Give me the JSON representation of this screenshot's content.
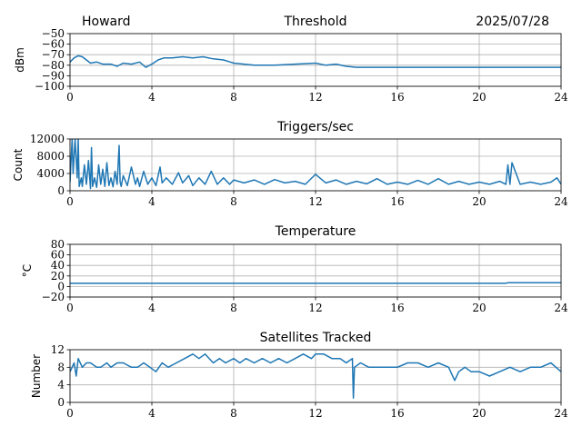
{
  "header": {
    "station": "Howard",
    "date": "2025/07/28"
  },
  "style": {
    "line_color": "#1f77b4",
    "grid_color": "#b0b0b0"
  },
  "chart_data": [
    {
      "id": "threshold",
      "type": "line",
      "title": "Threshold",
      "xlabel": "",
      "ylabel": "dBm",
      "xlim": [
        0,
        24
      ],
      "ylim": [
        -100,
        -50
      ],
      "xticks": [
        0,
        4,
        8,
        12,
        16,
        20,
        24
      ],
      "yticks": [
        -100,
        -90,
        -80,
        -70,
        -60,
        -50
      ],
      "ytick_labels": [
        "−100",
        "−90",
        "−80",
        "−70",
        "−60",
        "−50"
      ],
      "grid": true,
      "series": [
        {
          "x": [
            0,
            0.2,
            0.4,
            0.6,
            0.8,
            1.0,
            1.3,
            1.6,
            2.0,
            2.3,
            2.6,
            3.0,
            3.4,
            3.7,
            4.0,
            4.3,
            4.6,
            5.0,
            5.5,
            6.0,
            6.5,
            7.0,
            7.5,
            8.0,
            8.5,
            9.0,
            10.0,
            11.0,
            12.0,
            12.5,
            13.0,
            13.5,
            14.0,
            15.0,
            16.0,
            17.0,
            18.0,
            19.0,
            20.0,
            21.0,
            22.0,
            23.0,
            24.0
          ],
          "y": [
            -77,
            -73,
            -71,
            -72,
            -75,
            -78,
            -77,
            -79,
            -79,
            -81,
            -78,
            -79,
            -77,
            -82,
            -79,
            -75,
            -73,
            -73,
            -72,
            -73,
            -72,
            -74,
            -75,
            -78,
            -79,
            -80,
            -80,
            -79,
            -78,
            -80,
            -79,
            -81,
            -82,
            -82,
            -82,
            -82,
            -82,
            -82,
            -82,
            -82,
            -82,
            -82,
            -82
          ]
        }
      ]
    },
    {
      "id": "triggers",
      "type": "line",
      "title": "Triggers/sec",
      "xlabel": "",
      "ylabel": "Count",
      "xlim": [
        0,
        24
      ],
      "ylim": [
        0,
        12000
      ],
      "xticks": [
        0,
        4,
        8,
        12,
        16,
        20,
        24
      ],
      "yticks": [
        0,
        4000,
        8000,
        12000
      ],
      "ytick_labels": [
        "0",
        "4000",
        "8000",
        "12000"
      ],
      "grid": true,
      "series": [
        {
          "x": [
            0,
            0.1,
            0.15,
            0.25,
            0.35,
            0.4,
            0.45,
            0.55,
            0.6,
            0.7,
            0.8,
            0.9,
            1.0,
            1.05,
            1.1,
            1.2,
            1.3,
            1.4,
            1.5,
            1.6,
            1.7,
            1.8,
            1.9,
            2.0,
            2.1,
            2.2,
            2.3,
            2.4,
            2.45,
            2.5,
            2.6,
            2.8,
            3.0,
            3.2,
            3.3,
            3.4,
            3.6,
            3.8,
            4.0,
            4.2,
            4.4,
            4.5,
            4.7,
            5.0,
            5.3,
            5.5,
            5.8,
            6.0,
            6.3,
            6.6,
            6.9,
            7.2,
            7.5,
            7.8,
            8.0,
            8.5,
            9.0,
            9.5,
            10.0,
            10.5,
            11.0,
            11.5,
            12.0,
            12.5,
            13.0,
            13.5,
            14.0,
            14.5,
            15.0,
            15.5,
            16.0,
            16.5,
            17.0,
            17.5,
            18.0,
            18.5,
            19.0,
            19.5,
            20.0,
            20.5,
            21.0,
            21.3,
            21.4,
            21.5,
            21.6,
            22.0,
            22.5,
            23.0,
            23.5,
            23.8,
            24.0
          ],
          "y": [
            2000,
            12000,
            4000,
            12000,
            3000,
            12000,
            1000,
            3000,
            1000,
            6000,
            1500,
            7000,
            500,
            10000,
            1000,
            3000,
            800,
            6000,
            1500,
            5000,
            1000,
            6500,
            1200,
            3000,
            900,
            4500,
            1500,
            10500,
            2000,
            1000,
            3500,
            1200,
            5500,
            1500,
            3000,
            1000,
            4500,
            1500,
            3000,
            1200,
            5500,
            1800,
            3000,
            1500,
            4200,
            1800,
            3500,
            1200,
            3000,
            1500,
            4500,
            1500,
            3000,
            1500,
            2500,
            1800,
            2500,
            1500,
            2600,
            1800,
            2200,
            1500,
            3800,
            1800,
            2500,
            1500,
            2200,
            1600,
            2800,
            1500,
            2000,
            1500,
            2400,
            1500,
            2800,
            1500,
            2200,
            1500,
            2000,
            1500,
            2200,
            1500,
            6000,
            1500,
            6500,
            1500,
            2000,
            1500,
            2000,
            3000,
            1500
          ]
        }
      ]
    },
    {
      "id": "temperature",
      "type": "line",
      "title": "Temperature",
      "xlabel": "",
      "ylabel": "°C",
      "xlim": [
        0,
        24
      ],
      "ylim": [
        -20,
        80
      ],
      "xticks": [
        0,
        4,
        8,
        12,
        16,
        20,
        24
      ],
      "yticks": [
        -20,
        0,
        20,
        40,
        60,
        80
      ],
      "ytick_labels": [
        "−20",
        "0",
        "20",
        "40",
        "60",
        "80"
      ],
      "grid": true,
      "series": [
        {
          "x": [
            0,
            21.3,
            21.4,
            24
          ],
          "y": [
            6,
            6,
            7,
            7
          ]
        }
      ]
    },
    {
      "id": "satellites",
      "type": "line",
      "title": "Satellites Tracked",
      "xlabel": "",
      "ylabel": "Number",
      "xlim": [
        0,
        24
      ],
      "ylim": [
        0,
        12
      ],
      "xticks": [
        0,
        4,
        8,
        12,
        16,
        20,
        24
      ],
      "yticks": [
        0,
        4,
        8,
        12
      ],
      "ytick_labels": [
        "0",
        "4",
        "8",
        "12"
      ],
      "grid": true,
      "series": [
        {
          "x": [
            0,
            0.2,
            0.3,
            0.4,
            0.6,
            0.8,
            1.0,
            1.3,
            1.5,
            1.8,
            2.0,
            2.3,
            2.6,
            3.0,
            3.3,
            3.6,
            3.9,
            4.2,
            4.5,
            4.8,
            5.2,
            5.6,
            6.0,
            6.3,
            6.6,
            7.0,
            7.3,
            7.6,
            8.0,
            8.3,
            8.6,
            9.0,
            9.4,
            9.8,
            10.2,
            10.6,
            11.0,
            11.4,
            11.8,
            12.0,
            12.4,
            12.8,
            13.2,
            13.5,
            13.8,
            13.85,
            13.9,
            14.2,
            14.6,
            15.0,
            15.5,
            16.0,
            16.5,
            17.0,
            17.5,
            18.0,
            18.5,
            18.8,
            19.0,
            19.3,
            19.6,
            20.0,
            20.5,
            21.0,
            21.5,
            22.0,
            22.5,
            23.0,
            23.5,
            24.0
          ],
          "y": [
            7,
            9,
            6,
            10,
            8,
            9,
            9,
            8,
            8,
            9,
            8,
            9,
            9,
            8,
            8,
            9,
            8,
            7,
            9,
            8,
            9,
            10,
            11,
            10,
            11,
            9,
            10,
            9,
            10,
            9,
            10,
            9,
            10,
            9,
            10,
            9,
            10,
            11,
            10,
            11,
            11,
            10,
            10,
            9,
            10,
            1,
            8,
            9,
            8,
            8,
            8,
            8,
            9,
            9,
            8,
            9,
            8,
            5,
            7,
            8,
            7,
            7,
            6,
            7,
            8,
            7,
            8,
            8,
            9,
            7
          ]
        }
      ]
    }
  ]
}
